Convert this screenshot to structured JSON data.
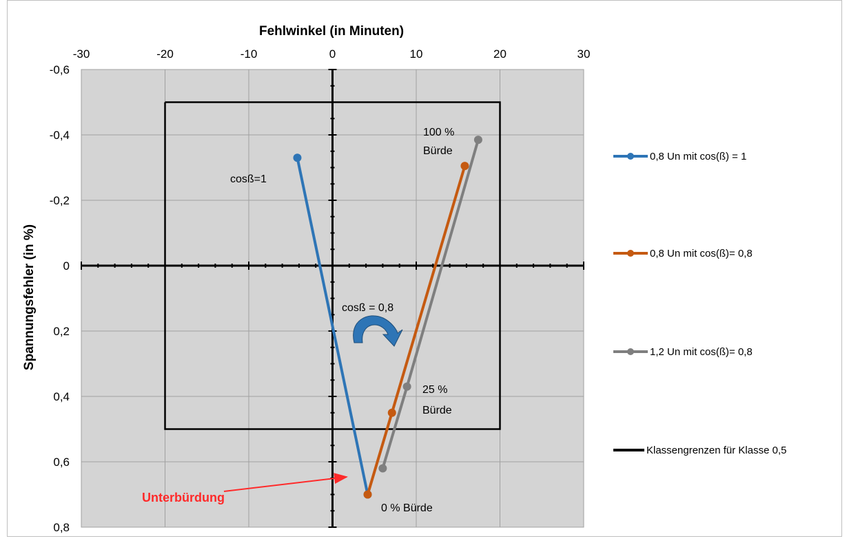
{
  "chart_data": {
    "type": "scatter",
    "xlabel": "Fehlwinkel (in Minuten)",
    "ylabel": "Spannungsfehler (in %)",
    "xlim": [
      -30,
      30
    ],
    "ylim": [
      -0.6,
      0.8
    ],
    "y_axis_inverted": true,
    "x_axis_position": "top",
    "x_ticks": [
      -30,
      -20,
      -10,
      0,
      10,
      20,
      30
    ],
    "y_ticks": [
      -0.6,
      -0.4,
      -0.2,
      0,
      0.2,
      0.4,
      0.6,
      0.8
    ],
    "x_tick_labels": [
      "-30",
      "-20",
      "-10",
      "0",
      "10",
      "20",
      "30"
    ],
    "y_tick_labels": [
      "-0,6",
      "-0,4",
      "-0,2",
      "0",
      "0,2",
      "0,4",
      "0,6",
      "0,8"
    ],
    "grid": true,
    "legend_position": "right",
    "series": [
      {
        "name": "0,8 Un mit cos(ß) = 1",
        "color": "#2e75b6",
        "x": [
          -4.2,
          4.2
        ],
        "y": [
          -0.33,
          0.7
        ]
      },
      {
        "name": "0,8 Un mit cos(ß)= 0,8",
        "color": "#c55a11",
        "x": [
          4.2,
          7.1,
          15.8
        ],
        "y": [
          0.7,
          0.45,
          -0.305
        ]
      },
      {
        "name": "1,2 Un mit cos(ß)= 0,8",
        "color": "#7f7f7f",
        "x": [
          6.0,
          8.9,
          17.4
        ],
        "y": [
          0.62,
          0.37,
          -0.385
        ]
      },
      {
        "name": "Klassengrenzen für Klasse 0,5",
        "color": "#000000",
        "x": [
          -20,
          20,
          20,
          -20,
          -20
        ],
        "y": [
          -0.5,
          -0.5,
          0.5,
          0.5,
          -0.5
        ],
        "markers": false
      }
    ],
    "annotations": {
      "cos1": "cosß=1",
      "cos08": "cosß = 0,8",
      "burden100_a": "100 %",
      "burden100_b": "Bürde",
      "burden25_a": "25 %",
      "burden25_b": "Bürde",
      "burden0": "0 % Bürde",
      "underburden": "Unterbürdung"
    },
    "annotation_colors": {
      "underburden": "#ff2a2a",
      "arrow": "#2e75b6"
    }
  }
}
